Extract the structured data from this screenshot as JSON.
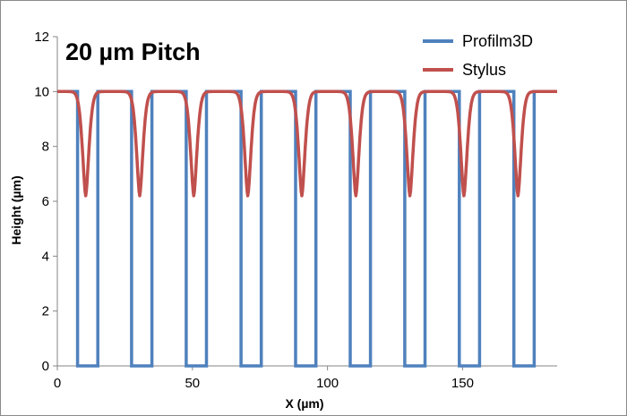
{
  "chart_data": {
    "type": "line",
    "title": "20 µm Pitch",
    "xlabel": "X (µm)",
    "ylabel": "Height  (µm)",
    "xlim": [
      0,
      185
    ],
    "ylim": [
      0,
      12
    ],
    "x_ticks": [
      "0",
      "50",
      "100",
      "150"
    ],
    "y_ticks": [
      "0",
      "2",
      "4",
      "6",
      "8",
      "10",
      "12"
    ],
    "grid": false,
    "legend_position": "top-right",
    "pitch": 20.2,
    "series": [
      {
        "name": "Profilm3D",
        "color": "#4f81bd",
        "style": "square-wave",
        "high": 10,
        "low": 0,
        "trench_intervals": [
          [
            7.5,
            15.0
          ],
          [
            27.5,
            35.0
          ],
          [
            47.7,
            55.2
          ],
          [
            68.0,
            75.5
          ],
          [
            88.2,
            95.7
          ],
          [
            108.4,
            115.9
          ],
          [
            128.6,
            136.1
          ],
          [
            148.8,
            156.3
          ],
          [
            169.0,
            176.5
          ]
        ],
        "x": [
          0,
          7.5,
          7.5,
          15.0,
          15.0,
          27.5,
          27.5,
          35.0,
          35.0,
          47.7,
          47.7,
          55.2,
          55.2,
          68.0,
          68.0,
          75.5,
          75.5,
          88.2,
          88.2,
          95.7,
          95.7,
          108.4,
          108.4,
          115.9,
          115.9,
          128.6,
          128.6,
          136.1,
          136.1,
          148.8,
          148.8,
          156.3,
          156.3,
          169.0,
          169.0,
          176.5,
          176.5,
          185
        ],
        "y": [
          10,
          10,
          0,
          0,
          10,
          10,
          0,
          0,
          10,
          10,
          0,
          0,
          10,
          10,
          0,
          0,
          10,
          10,
          0,
          0,
          10,
          10,
          0,
          0,
          10,
          10,
          0,
          0,
          10,
          10,
          0,
          0,
          10,
          10,
          0,
          0,
          10,
          10
        ]
      },
      {
        "name": "Stylus",
        "color": "#c0504d",
        "style": "smooth-dips",
        "high": 10,
        "dip_centers_x": [
          10.5,
          30.5,
          50.5,
          70.5,
          90.5,
          110.5,
          130.5,
          150.5,
          170.5
        ],
        "dip_min_y": [
          6.2,
          6.2,
          6.2,
          6.2,
          6.2,
          6.2,
          6.2,
          6.2,
          6.2
        ]
      }
    ]
  }
}
